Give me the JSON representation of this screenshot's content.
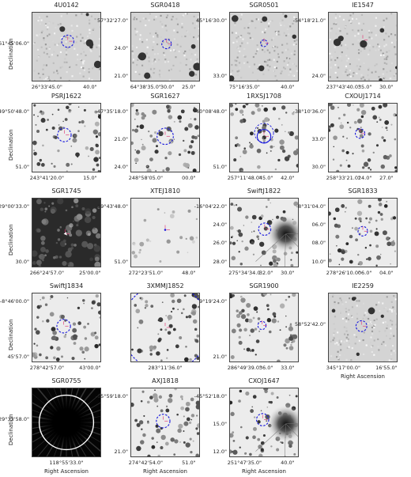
{
  "axis_labels": {
    "y": "Declination",
    "x": "Right Ascension"
  },
  "panels": [
    {
      "id": "4U0142",
      "title": "4U0142",
      "yticks": [
        "61°45'06.0\""
      ],
      "xticks": [
        "26°33'45.0\"",
        "40.0\""
      ],
      "background": "noise-light"
    },
    {
      "id": "SGR0418",
      "title": "SGR0418",
      "yticks": [
        "57°32'27.0\"",
        "24.0\"",
        "21.0\""
      ],
      "xticks": [
        "64°38'35.0\"",
        "30.0\"",
        "25.0\""
      ],
      "background": "noise-light"
    },
    {
      "id": "SGR0501",
      "title": "SGR0501",
      "yticks": [
        "45°16'30.0\"",
        "33.0\""
      ],
      "xticks": [
        "75°16'35.0\"",
        "40.0\""
      ],
      "background": "noise-light"
    },
    {
      "id": "IE1547",
      "title": "IE1547",
      "yticks": [
        "-54°18'21.0\"",
        "24.0\""
      ],
      "xticks": [
        "237°43'40.0\"",
        "35.0\"",
        "30.0\""
      ],
      "background": "noise-light"
    },
    {
      "id": "PSRJ1622",
      "title": "PSRJ1622",
      "yticks": [
        "-49°50'48.0\"",
        "51.0\""
      ],
      "xticks": [
        "243°41'20.0\"",
        "15.0\""
      ],
      "background": "crowded"
    },
    {
      "id": "SGR1627",
      "title": "SGR1627",
      "yticks": [
        "-47°35'18.0\"",
        "21.0\"",
        "24.0\""
      ],
      "xticks": [
        "248°58'05.0\"",
        "00.0\""
      ],
      "background": "crowded"
    },
    {
      "id": "1RXSJ1708",
      "title": "1RXSJ1708",
      "yticks": [
        "-40°08'48.0\"",
        "51.0\""
      ],
      "xticks": [
        "257°11'48.0\"",
        "45.0\"",
        "42.0\""
      ],
      "background": "crowded"
    },
    {
      "id": "CXOUJ1714",
      "title": "CXOUJ1714",
      "yticks": [
        "-38°10'36.0\"",
        "33.0\"",
        "30.0\""
      ],
      "xticks": [
        "258°33'21.0\"",
        "24.0\"",
        "27.0\""
      ],
      "background": "crowded"
    },
    {
      "id": "SGR1745",
      "title": "SGR1745",
      "yticks": [
        "-29°00'33.0\"",
        "30.0\""
      ],
      "xticks": [
        "266°24'57.0\"",
        "25'00.0\""
      ],
      "background": "dark"
    },
    {
      "id": "XTEJ1810",
      "title": "XTEJ1810",
      "yticks": [
        "-19°43'48.0\"",
        "51.0\""
      ],
      "xticks": [
        "272°23'51.0\"",
        "48.0\""
      ],
      "background": "smooth"
    },
    {
      "id": "SwiftJ1822",
      "title": "SwiftJ1822",
      "yticks": [
        "-16°04'22.0\"",
        "24.0\"",
        "26.0\"",
        "28.0\""
      ],
      "xticks": [
        "275°34'34.0",
        "32.0\"",
        "30.0\""
      ],
      "background": "bright-star"
    },
    {
      "id": "SGR1833",
      "title": "SGR1833",
      "yticks": [
        "-8°31'04.0\"",
        "06.0\"",
        "08.0\"",
        "10.0\""
      ],
      "xticks": [
        "278°26'10.0\"",
        "06.0\"",
        "04.0\""
      ],
      "background": "crowded"
    },
    {
      "id": "SwiftJ1834",
      "title": "SwiftJ1834",
      "yticks": [
        "-8°46'00.0\"",
        "45'57.0\""
      ],
      "xticks": [
        "278°42'57.0\"",
        "43'00.0\""
      ],
      "background": "crowded"
    },
    {
      "id": "3XMMJ1852",
      "title": "3XMMJ1852",
      "yticks": [],
      "xticks": [
        "283°11'36.0\""
      ],
      "background": "crowded"
    },
    {
      "id": "SGR1900",
      "title": "SGR1900",
      "yticks": [
        "9°19'24.0\"",
        "21.0\""
      ],
      "xticks": [
        "286°49'39.0\"",
        "36.0\"",
        "33.0\""
      ],
      "background": "crowded"
    },
    {
      "id": "IE2259",
      "title": "IE2259",
      "yticks": [
        "58°52'42.0\""
      ],
      "xticks": [
        "345°17'00.0\"",
        "16'55.0\""
      ],
      "background": "noise-light"
    },
    {
      "id": "SGR0755",
      "title": "SGR0755",
      "yticks": [
        "-29°33'58.0\""
      ],
      "xticks": [
        "118°55'33.0\""
      ],
      "background": "black-burst"
    },
    {
      "id": "AXJ1818",
      "title": "AXJ1818",
      "yticks": [
        "-15°59'18.0\"",
        "21.0\""
      ],
      "xticks": [
        "274°42'54.0\"",
        "51.0\""
      ],
      "background": "crowded"
    },
    {
      "id": "CXOJ1647",
      "title": "CXOJ1647",
      "yticks": [
        "-45°52'18.0\"",
        "15.0\"",
        "12.0\""
      ],
      "xticks": [
        "251°47'35.0\"",
        "40.0\""
      ],
      "background": "bright-star"
    }
  ],
  "colors": {
    "error_circle": "#1a1adc",
    "marker": "#e0407a",
    "frame": "#444444"
  }
}
